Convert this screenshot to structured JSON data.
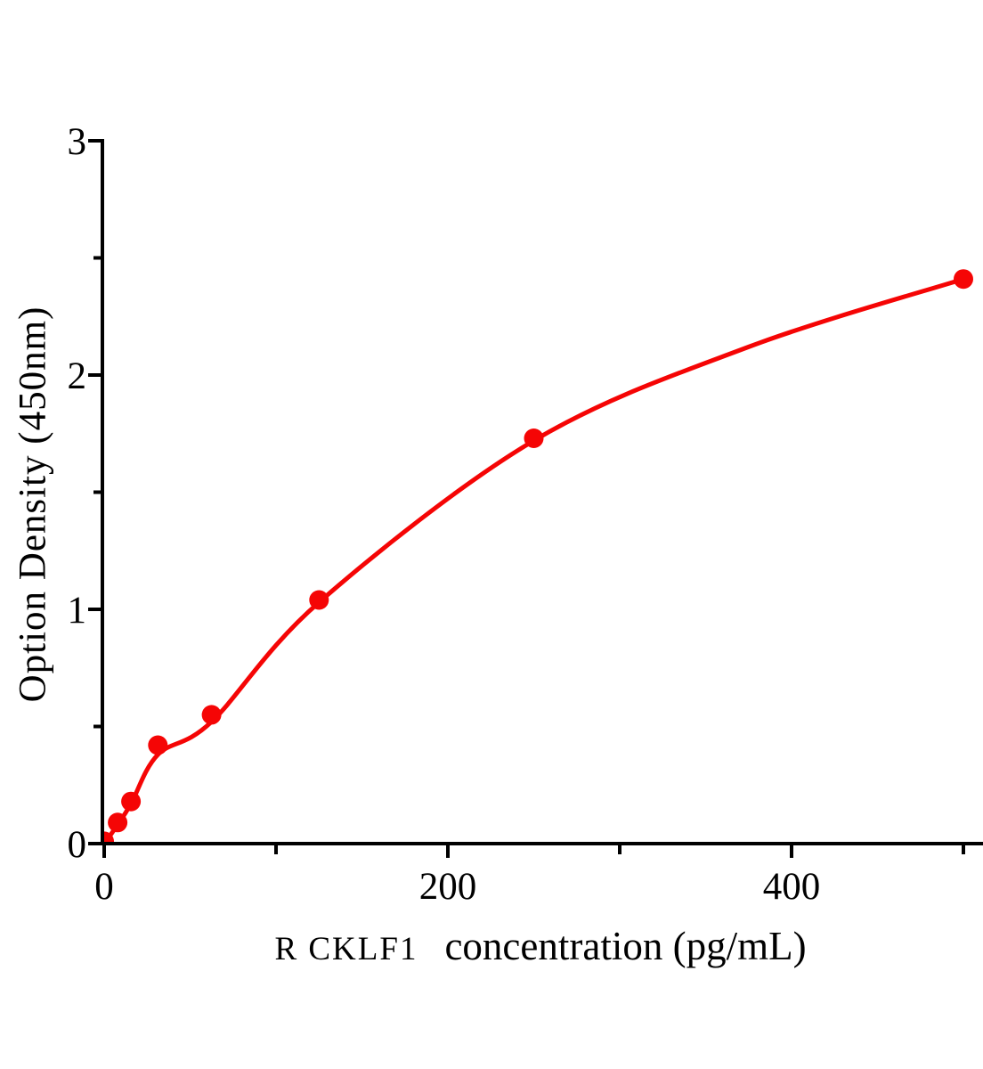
{
  "page": {
    "background": "#ffffff"
  },
  "chart_data": {
    "type": "scatter",
    "title": "",
    "xlabel": "R CKLF1  concentration (pg/mL)",
    "xlabel_prefix": "R CKLF1",
    "xlabel_main": "concentration (pg/mL)",
    "ylabel": "Option Density (450nm)",
    "xlim": [
      0,
      511
    ],
    "ylim": [
      0,
      3
    ],
    "x_major_ticks": [
      0,
      200,
      400
    ],
    "x_minor_ticks": [
      100,
      300,
      500
    ],
    "y_major_ticks": [
      0,
      1,
      2,
      3
    ],
    "y_minor_ticks": [
      0.5,
      1.5,
      2.5
    ],
    "grid": false,
    "legend": null,
    "marker": "filled-circle",
    "point_color": "#f50505",
    "line_color": "#f50505",
    "axis_color": "#000000",
    "points": {
      "x": [
        0,
        7.8,
        15.6,
        31.25,
        62.5,
        125,
        250,
        500
      ],
      "y": [
        0.01,
        0.09,
        0.18,
        0.42,
        0.55,
        1.04,
        1.73,
        2.41
      ]
    },
    "fit_curve": [
      [
        0,
        0.0
      ],
      [
        7.8,
        0.08
      ],
      [
        15.6,
        0.17
      ],
      [
        31.25,
        0.38
      ],
      [
        62.5,
        0.52
      ],
      [
        125,
        1.03
      ],
      [
        250,
        1.72
      ],
      [
        375,
        2.12
      ],
      [
        500,
        2.41
      ]
    ]
  }
}
